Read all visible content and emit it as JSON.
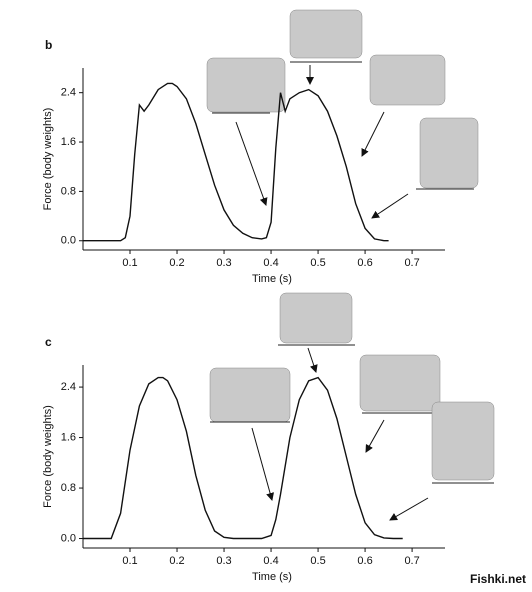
{
  "chart_data": [
    {
      "type": "line",
      "panel_label": "b",
      "xlabel": "Time (s)",
      "ylabel": "Force (body weights)",
      "x": [
        0,
        0.08,
        0.09,
        0.1,
        0.11,
        0.12,
        0.13,
        0.14,
        0.16,
        0.18,
        0.19,
        0.2,
        0.22,
        0.24,
        0.26,
        0.28,
        0.3,
        0.32,
        0.34,
        0.36,
        0.38,
        0.39,
        0.4,
        0.41,
        0.42,
        0.43,
        0.44,
        0.46,
        0.48,
        0.5,
        0.52,
        0.54,
        0.56,
        0.58,
        0.6,
        0.62,
        0.64,
        0.65
      ],
      "series": [
        {
          "color": "#111111",
          "values": [
            0,
            0,
            0.05,
            0.4,
            1.4,
            2.2,
            2.1,
            2.2,
            2.45,
            2.55,
            2.55,
            2.5,
            2.3,
            1.9,
            1.4,
            0.9,
            0.5,
            0.25,
            0.12,
            0.05,
            0.03,
            0.05,
            0.3,
            1.5,
            2.4,
            2.1,
            2.3,
            2.4,
            2.45,
            2.35,
            2.1,
            1.7,
            1.2,
            0.6,
            0.2,
            0.03,
            0,
            0
          ]
        }
      ],
      "xlim": [
        0,
        0.77
      ],
      "ylim": [
        -0.15,
        2.8
      ],
      "xticks": [
        0.1,
        0.2,
        0.3,
        0.4,
        0.5,
        0.6,
        0.7
      ],
      "yticks": [
        {
          "value": 0,
          "label": "0.0"
        },
        0.8,
        1.6,
        2.4
      ]
    },
    {
      "type": "line",
      "panel_label": "c",
      "xlabel": "Time (s)",
      "ylabel": "Force (body weights)",
      "x": [
        0,
        0.06,
        0.08,
        0.1,
        0.12,
        0.14,
        0.16,
        0.17,
        0.18,
        0.2,
        0.22,
        0.24,
        0.26,
        0.28,
        0.3,
        0.32,
        0.38,
        0.4,
        0.41,
        0.42,
        0.44,
        0.46,
        0.48,
        0.5,
        0.52,
        0.54,
        0.56,
        0.58,
        0.6,
        0.62,
        0.64,
        0.66,
        0.68
      ],
      "series": [
        {
          "color": "#111111",
          "values": [
            0,
            0,
            0.4,
            1.4,
            2.1,
            2.45,
            2.55,
            2.55,
            2.5,
            2.2,
            1.7,
            1.0,
            0.45,
            0.12,
            0.02,
            0,
            0,
            0.05,
            0.3,
            0.7,
            1.6,
            2.2,
            2.5,
            2.55,
            2.35,
            1.9,
            1.3,
            0.7,
            0.25,
            0.06,
            0.01,
            0,
            0
          ]
        }
      ],
      "xlim": [
        0,
        0.77
      ],
      "ylim": [
        -0.15,
        2.75
      ],
      "xticks": [
        0.1,
        0.2,
        0.3,
        0.4,
        0.5,
        0.6,
        0.7
      ],
      "yticks": [
        {
          "value": 0,
          "label": "0.0"
        },
        0.8,
        1.6,
        2.4
      ]
    }
  ],
  "watermark": "Fishki.net"
}
